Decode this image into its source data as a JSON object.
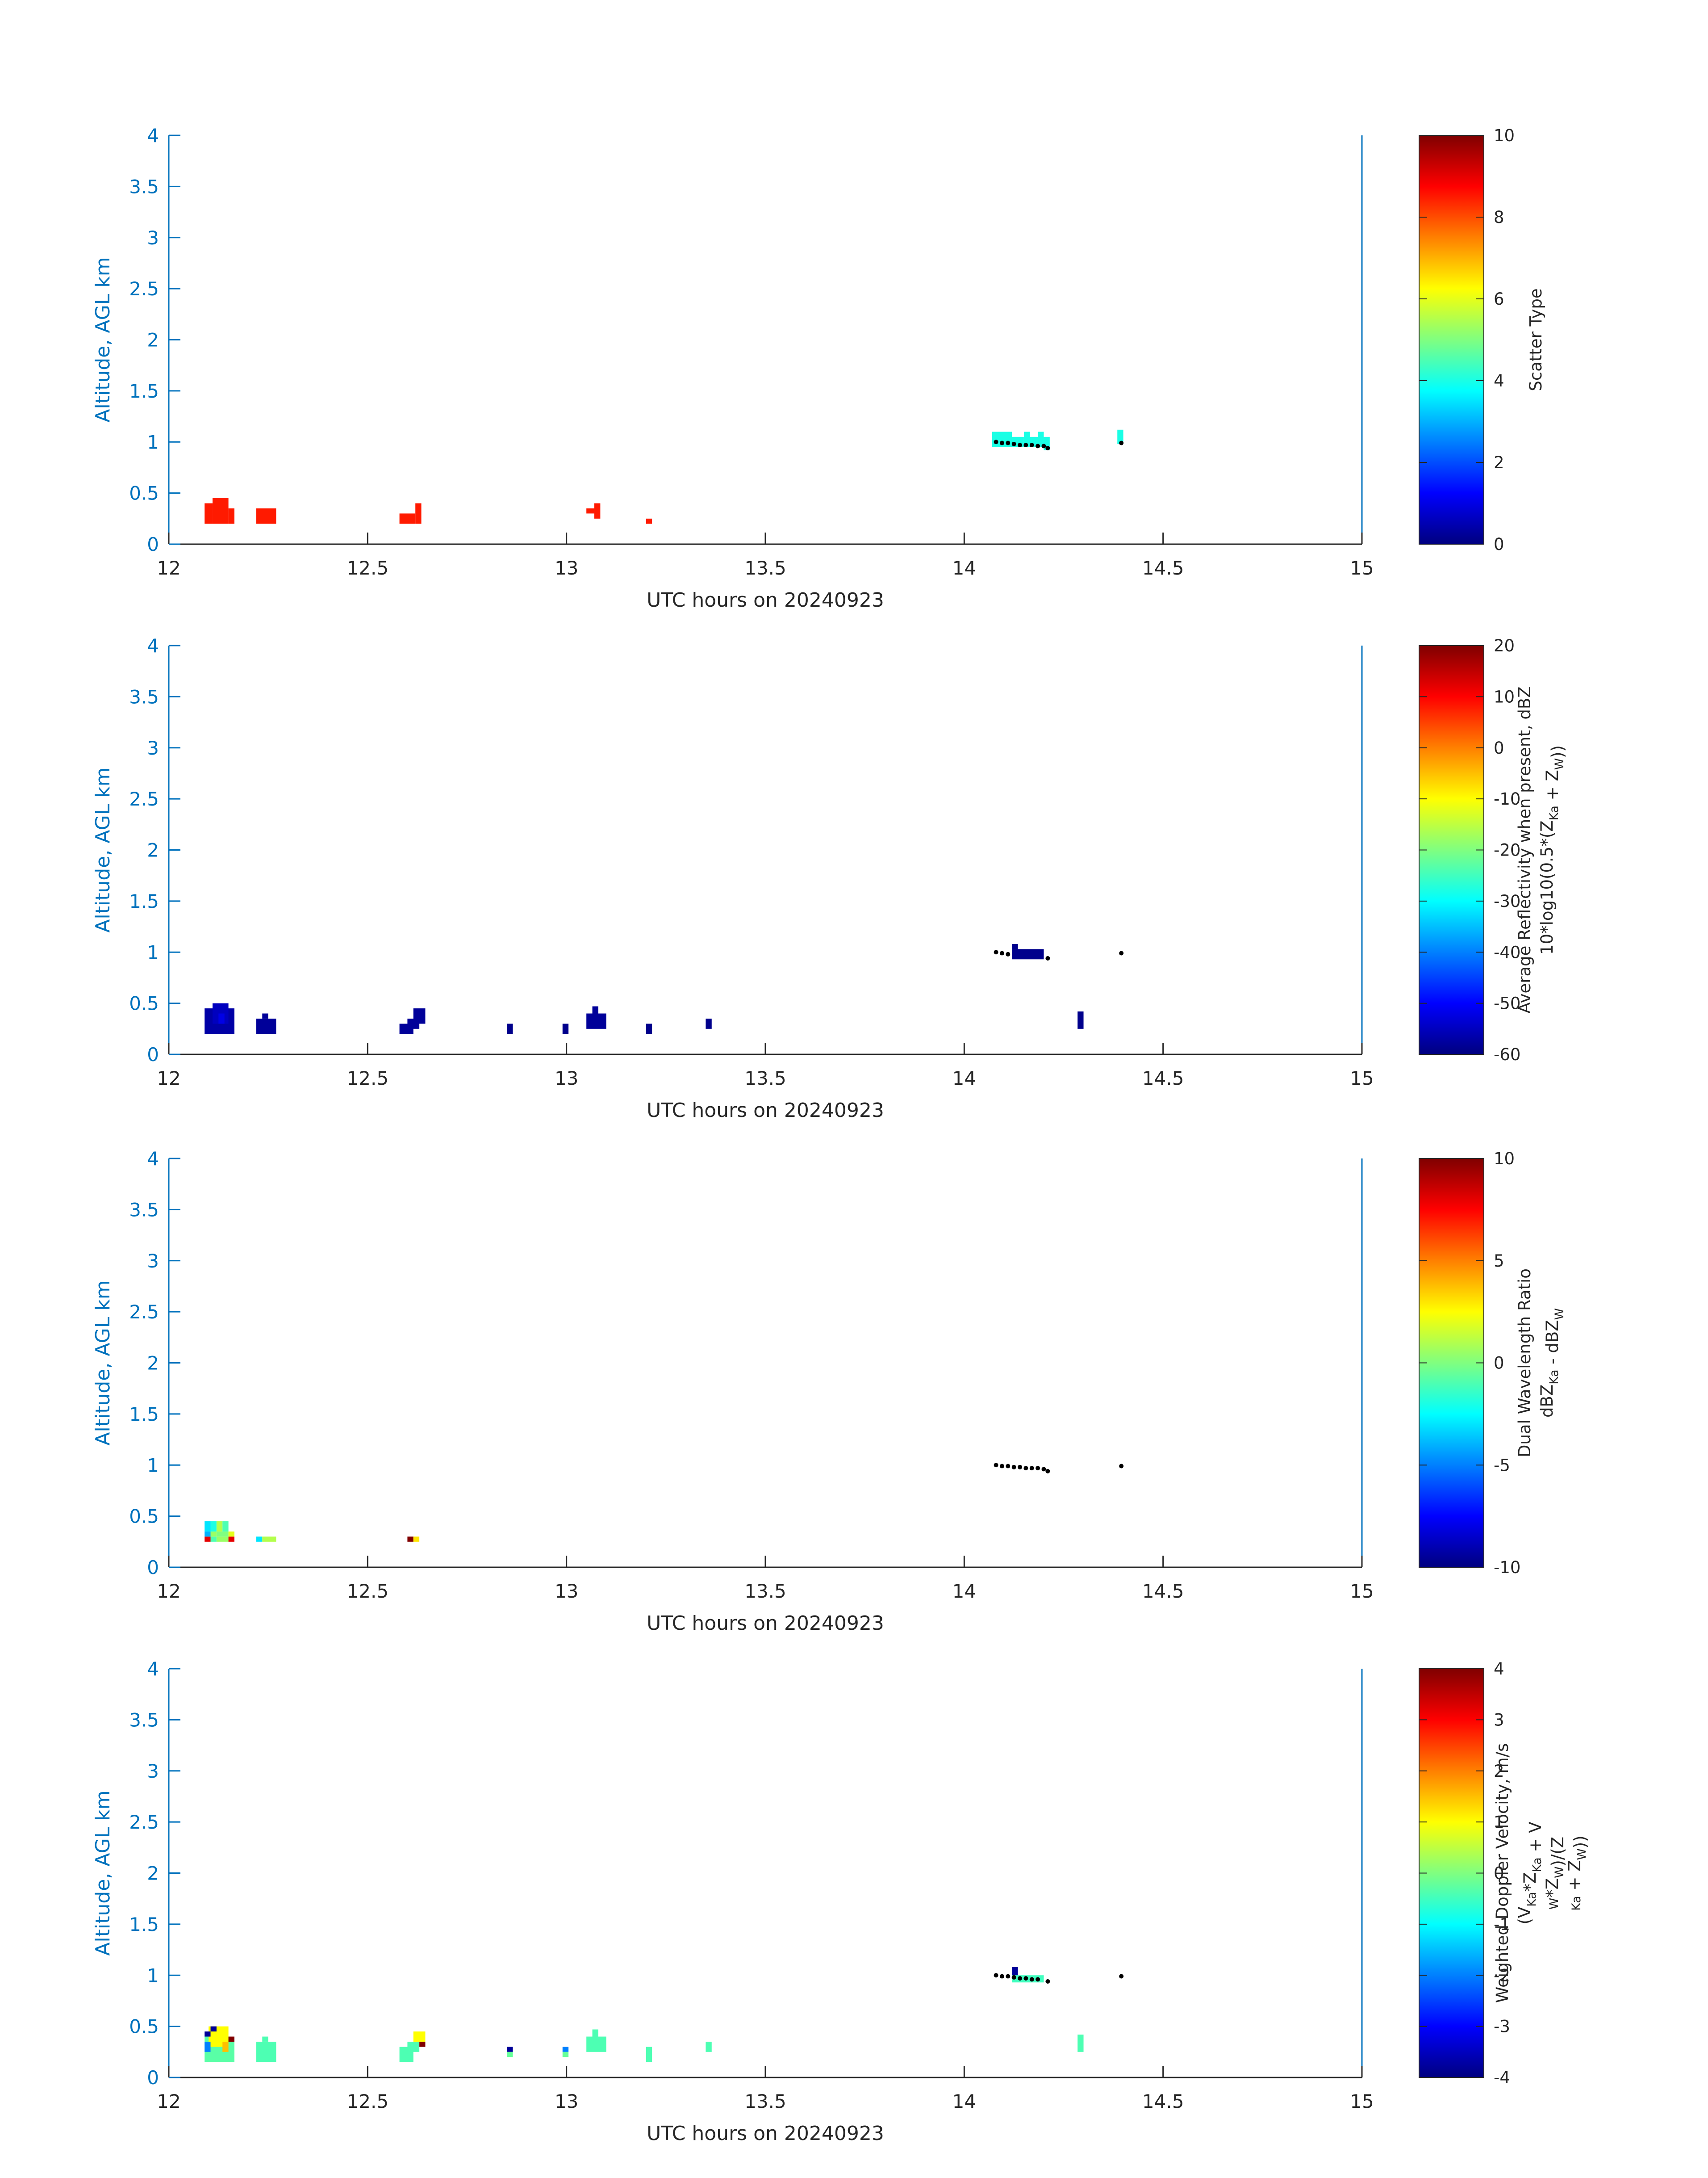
{
  "figure": {
    "colors": {
      "axis_y": "#0072BD",
      "text": "#262626",
      "colormap": "jet",
      "overlay_dots": "#000000"
    }
  },
  "chart_data": [
    {
      "type": "heatmap",
      "xlabel": "UTC hours on 20240923",
      "ylabel": "Altitude, AGL km",
      "xlim": [
        12,
        15
      ],
      "ylim": [
        0,
        4
      ],
      "xticks": [
        "12",
        "12.5",
        "13",
        "13.5",
        "14",
        "14.5",
        "15"
      ],
      "yticks": [
        "0",
        "0.5",
        "1",
        "1.5",
        "2",
        "2.5",
        "3",
        "3.5",
        "4"
      ],
      "colorbar": {
        "lines": [
          {
            "text": "Scatter Type"
          }
        ],
        "clim": [
          0,
          10
        ],
        "ticks": [
          "0",
          "2",
          "4",
          "6",
          "8",
          "10"
        ]
      },
      "cells": [
        {
          "t0": 12.09,
          "t1": 12.11,
          "z0": 0.2,
          "z1": 0.4,
          "v": 8.5
        },
        {
          "t0": 12.11,
          "t1": 12.15,
          "z0": 0.2,
          "z1": 0.45,
          "v": 8.5
        },
        {
          "t0": 12.15,
          "t1": 12.165,
          "z0": 0.2,
          "z1": 0.35,
          "v": 8.5
        },
        {
          "t0": 12.22,
          "t1": 12.27,
          "z0": 0.2,
          "z1": 0.35,
          "v": 8.5
        },
        {
          "t0": 12.58,
          "t1": 12.62,
          "z0": 0.2,
          "z1": 0.3,
          "v": 8.5
        },
        {
          "t0": 12.62,
          "t1": 12.635,
          "z0": 0.2,
          "z1": 0.4,
          "v": 8.5
        },
        {
          "t0": 13.05,
          "t1": 13.07,
          "z0": 0.3,
          "z1": 0.35,
          "v": 8.5
        },
        {
          "t0": 13.07,
          "t1": 13.085,
          "z0": 0.25,
          "z1": 0.4,
          "v": 8.5
        },
        {
          "t0": 13.2,
          "t1": 13.215,
          "z0": 0.2,
          "z1": 0.25,
          "v": 8.5
        },
        {
          "t0": 14.07,
          "t1": 14.12,
          "z0": 0.95,
          "z1": 1.1,
          "v": 4.0
        },
        {
          "t0": 14.12,
          "t1": 14.15,
          "z0": 0.95,
          "z1": 1.05,
          "v": 4.0
        },
        {
          "t0": 14.15,
          "t1": 14.165,
          "z0": 0.95,
          "z1": 1.1,
          "v": 4.0
        },
        {
          "t0": 14.165,
          "t1": 14.185,
          "z0": 0.95,
          "z1": 1.05,
          "v": 4.0
        },
        {
          "t0": 14.185,
          "t1": 14.2,
          "z0": 0.95,
          "z1": 1.1,
          "v": 4.0
        },
        {
          "t0": 14.2,
          "t1": 14.215,
          "z0": 0.92,
          "z1": 1.05,
          "v": 4.0
        },
        {
          "t0": 14.385,
          "t1": 14.4,
          "z0": 0.98,
          "z1": 1.12,
          "v": 4.0
        }
      ],
      "dots": [
        {
          "t": 14.08,
          "z": 1.0
        },
        {
          "t": 14.095,
          "z": 0.99
        },
        {
          "t": 14.11,
          "z": 0.99
        },
        {
          "t": 14.125,
          "z": 0.98
        },
        {
          "t": 14.14,
          "z": 0.97
        },
        {
          "t": 14.155,
          "z": 0.97
        },
        {
          "t": 14.17,
          "z": 0.97
        },
        {
          "t": 14.185,
          "z": 0.96
        },
        {
          "t": 14.2,
          "z": 0.96
        },
        {
          "t": 14.21,
          "z": 0.94
        },
        {
          "t": 14.395,
          "z": 0.99
        }
      ]
    },
    {
      "type": "heatmap",
      "xlabel": "UTC hours on 20240923",
      "ylabel": "Altitude, AGL km",
      "xlim": [
        12,
        15
      ],
      "ylim": [
        0,
        4
      ],
      "xticks": [
        "12",
        "12.5",
        "13",
        "13.5",
        "14",
        "14.5",
        "15"
      ],
      "yticks": [
        "0",
        "0.5",
        "1",
        "1.5",
        "2",
        "2.5",
        "3",
        "3.5",
        "4"
      ],
      "colorbar": {
        "lines": [
          {
            "text": "Average Reflectivity when present, dBZ"
          },
          {
            "text": "10*log10(0.5*(Z",
            "sub1": "Ka",
            "mid": " + Z",
            "sub2": "W",
            "end": "))"
          }
        ],
        "clim": [
          -60,
          20
        ],
        "ticks": [
          "-60",
          "-50",
          "-40",
          "-30",
          "-20",
          "-10",
          "0",
          "10",
          "20"
        ]
      },
      "cells": [
        {
          "t0": 12.09,
          "t1": 12.165,
          "z0": 0.2,
          "z1": 0.45,
          "v": -57
        },
        {
          "t0": 12.11,
          "t1": 12.15,
          "z0": 0.3,
          "z1": 0.5,
          "v": -55
        },
        {
          "t0": 12.125,
          "t1": 12.14,
          "z0": 0.3,
          "z1": 0.4,
          "v": -52
        },
        {
          "t0": 12.22,
          "t1": 12.27,
          "z0": 0.2,
          "z1": 0.35,
          "v": -58
        },
        {
          "t0": 12.235,
          "t1": 12.25,
          "z0": 0.35,
          "z1": 0.4,
          "v": -58
        },
        {
          "t0": 12.58,
          "t1": 12.615,
          "z0": 0.2,
          "z1": 0.3,
          "v": -58
        },
        {
          "t0": 12.6,
          "t1": 12.63,
          "z0": 0.25,
          "z1": 0.35,
          "v": -58
        },
        {
          "t0": 12.615,
          "t1": 12.645,
          "z0": 0.3,
          "z1": 0.45,
          "v": -58
        },
        {
          "t0": 12.85,
          "t1": 12.865,
          "z0": 0.2,
          "z1": 0.3,
          "v": -59
        },
        {
          "t0": 12.99,
          "t1": 13.005,
          "z0": 0.2,
          "z1": 0.3,
          "v": -59
        },
        {
          "t0": 13.05,
          "t1": 13.1,
          "z0": 0.25,
          "z1": 0.4,
          "v": -58
        },
        {
          "t0": 13.065,
          "t1": 13.08,
          "z0": 0.4,
          "z1": 0.47,
          "v": -58
        },
        {
          "t0": 13.2,
          "t1": 13.215,
          "z0": 0.2,
          "z1": 0.3,
          "v": -59
        },
        {
          "t0": 13.35,
          "t1": 13.365,
          "z0": 0.25,
          "z1": 0.35,
          "v": -59
        },
        {
          "t0": 14.12,
          "t1": 14.2,
          "z0": 0.93,
          "z1": 1.03,
          "v": -59
        },
        {
          "t0": 14.12,
          "t1": 14.135,
          "z0": 1.03,
          "z1": 1.08,
          "v": -59
        },
        {
          "t0": 14.285,
          "t1": 14.3,
          "z0": 0.25,
          "z1": 0.42,
          "v": -59
        }
      ],
      "dots": [
        {
          "t": 14.08,
          "z": 1.0
        },
        {
          "t": 14.095,
          "z": 0.99
        },
        {
          "t": 14.11,
          "z": 0.98
        },
        {
          "t": 14.21,
          "z": 0.94
        },
        {
          "t": 14.395,
          "z": 0.99
        }
      ]
    },
    {
      "type": "heatmap",
      "xlabel": "UTC hours on 20240923",
      "ylabel": "Altitude, AGL km",
      "xlim": [
        12,
        15
      ],
      "ylim": [
        0,
        4
      ],
      "xticks": [
        "12",
        "12.5",
        "13",
        "13.5",
        "14",
        "14.5",
        "15"
      ],
      "yticks": [
        "0",
        "0.5",
        "1",
        "1.5",
        "2",
        "2.5",
        "3",
        "3.5",
        "4"
      ],
      "colorbar": {
        "lines": [
          {
            "text": "Dual Wavelength Ratio"
          },
          {
            "text": "dBZ",
            "sub1": "Ka",
            "mid": " - dBZ",
            "sub2": "W",
            "end": ""
          }
        ],
        "clim": [
          -10,
          10
        ],
        "ticks": [
          "-10",
          "-5",
          "0",
          "5",
          "10"
        ]
      },
      "cells": [
        {
          "t0": 12.09,
          "t1": 12.105,
          "z0": 0.25,
          "z1": 0.3,
          "v": 8.0
        },
        {
          "t0": 12.09,
          "t1": 12.105,
          "z0": 0.3,
          "z1": 0.35,
          "v": -4.0
        },
        {
          "t0": 12.09,
          "t1": 12.105,
          "z0": 0.35,
          "z1": 0.45,
          "v": -3.0
        },
        {
          "t0": 12.105,
          "t1": 12.12,
          "z0": 0.25,
          "z1": 0.3,
          "v": -1.0
        },
        {
          "t0": 12.105,
          "t1": 12.12,
          "z0": 0.3,
          "z1": 0.35,
          "v": 0.5
        },
        {
          "t0": 12.105,
          "t1": 12.12,
          "z0": 0.35,
          "z1": 0.45,
          "v": -2.0
        },
        {
          "t0": 12.12,
          "t1": 12.15,
          "z0": 0.25,
          "z1": 0.3,
          "v": 0.5
        },
        {
          "t0": 12.12,
          "t1": 12.15,
          "z0": 0.3,
          "z1": 0.35,
          "v": 0.0
        },
        {
          "t0": 12.12,
          "t1": 12.135,
          "z0": 0.35,
          "z1": 0.45,
          "v": 1.0
        },
        {
          "t0": 12.135,
          "t1": 12.15,
          "z0": 0.35,
          "z1": 0.45,
          "v": -1.0
        },
        {
          "t0": 12.15,
          "t1": 12.165,
          "z0": 0.25,
          "z1": 0.3,
          "v": 8.0
        },
        {
          "t0": 12.15,
          "t1": 12.165,
          "z0": 0.3,
          "z1": 0.35,
          "v": 2.0
        },
        {
          "t0": 12.22,
          "t1": 12.235,
          "z0": 0.25,
          "z1": 0.3,
          "v": -3.0
        },
        {
          "t0": 12.235,
          "t1": 12.27,
          "z0": 0.25,
          "z1": 0.3,
          "v": 1.0
        },
        {
          "t0": 12.6,
          "t1": 12.615,
          "z0": 0.25,
          "z1": 0.3,
          "v": 10.0
        },
        {
          "t0": 12.615,
          "t1": 12.63,
          "z0": 0.25,
          "z1": 0.3,
          "v": 3.0
        }
      ],
      "dots": [
        {
          "t": 14.08,
          "z": 1.0
        },
        {
          "t": 14.095,
          "z": 0.99
        },
        {
          "t": 14.11,
          "z": 0.99
        },
        {
          "t": 14.125,
          "z": 0.98
        },
        {
          "t": 14.14,
          "z": 0.98
        },
        {
          "t": 14.155,
          "z": 0.97
        },
        {
          "t": 14.17,
          "z": 0.97
        },
        {
          "t": 14.185,
          "z": 0.97
        },
        {
          "t": 14.2,
          "z": 0.96
        },
        {
          "t": 14.21,
          "z": 0.94
        },
        {
          "t": 14.395,
          "z": 0.99
        }
      ]
    },
    {
      "type": "heatmap",
      "xlabel": "UTC hours on 20240923",
      "ylabel": "Altitude, AGL km",
      "xlim": [
        12,
        15
      ],
      "ylim": [
        0,
        4
      ],
      "xticks": [
        "12",
        "12.5",
        "13",
        "13.5",
        "14",
        "14.5",
        "15"
      ],
      "yticks": [
        "0",
        "0.5",
        "1",
        "1.5",
        "2",
        "2.5",
        "3",
        "3.5",
        "4"
      ],
      "colorbar": {
        "lines": [
          {
            "text": "Weighted Doppler Velocity, m/s"
          },
          {
            "text": "(V",
            "sub1": "Ka",
            "mid": "*Z",
            "sub2": "Ka",
            "end": " + V"
          },
          {
            "text": "",
            "sub1": "W",
            "mid": "*Z",
            "sub2": "W",
            "end": ")/(Z"
          },
          {
            "text": "",
            "sub1": "Ka",
            "mid": " + Z",
            "sub2": "W",
            "end": "))"
          }
        ],
        "clim": [
          -4,
          4
        ],
        "ticks": [
          "-4",
          "-3",
          "-2",
          "-1",
          "0",
          "1",
          "2",
          "3",
          "4"
        ]
      },
      "cells": [
        {
          "t0": 12.09,
          "t1": 12.165,
          "z0": 0.15,
          "z1": 0.4,
          "v": -0.3
        },
        {
          "t0": 12.1,
          "t1": 12.15,
          "z0": 0.3,
          "z1": 0.5,
          "v": 1.0
        },
        {
          "t0": 12.09,
          "t1": 12.105,
          "z0": 0.25,
          "z1": 0.35,
          "v": -2.0
        },
        {
          "t0": 12.09,
          "t1": 12.105,
          "z0": 0.4,
          "z1": 0.45,
          "v": -3.8
        },
        {
          "t0": 12.105,
          "t1": 12.12,
          "z0": 0.45,
          "z1": 0.5,
          "v": -3.8
        },
        {
          "t0": 12.15,
          "t1": 12.165,
          "z0": 0.35,
          "z1": 0.4,
          "v": 4.0
        },
        {
          "t0": 12.135,
          "t1": 12.15,
          "z0": 0.25,
          "z1": 0.35,
          "v": 1.5
        },
        {
          "t0": 12.22,
          "t1": 12.27,
          "z0": 0.15,
          "z1": 0.35,
          "v": -0.4
        },
        {
          "t0": 12.235,
          "t1": 12.25,
          "z0": 0.35,
          "z1": 0.4,
          "v": -0.4
        },
        {
          "t0": 12.58,
          "t1": 12.615,
          "z0": 0.15,
          "z1": 0.3,
          "v": -0.4
        },
        {
          "t0": 12.6,
          "t1": 12.63,
          "z0": 0.25,
          "z1": 0.35,
          "v": -0.4
        },
        {
          "t0": 12.615,
          "t1": 12.645,
          "z0": 0.35,
          "z1": 0.45,
          "v": 1.0
        },
        {
          "t0": 12.63,
          "t1": 12.645,
          "z0": 0.3,
          "z1": 0.35,
          "v": 4.0
        },
        {
          "t0": 12.85,
          "t1": 12.865,
          "z0": 0.25,
          "z1": 0.3,
          "v": -3.8
        },
        {
          "t0": 12.85,
          "t1": 12.865,
          "z0": 0.2,
          "z1": 0.25,
          "v": -0.2
        },
        {
          "t0": 12.99,
          "t1": 13.005,
          "z0": 0.25,
          "z1": 0.3,
          "v": -2.0
        },
        {
          "t0": 12.99,
          "t1": 13.005,
          "z0": 0.2,
          "z1": 0.25,
          "v": -0.2
        },
        {
          "t0": 13.05,
          "t1": 13.1,
          "z0": 0.25,
          "z1": 0.4,
          "v": -0.4
        },
        {
          "t0": 13.065,
          "t1": 13.08,
          "z0": 0.4,
          "z1": 0.47,
          "v": -0.4
        },
        {
          "t0": 13.2,
          "t1": 13.215,
          "z0": 0.15,
          "z1": 0.3,
          "v": -0.4
        },
        {
          "t0": 13.35,
          "t1": 13.365,
          "z0": 0.25,
          "z1": 0.35,
          "v": -0.4
        },
        {
          "t0": 14.12,
          "t1": 14.2,
          "z0": 0.93,
          "z1": 1.0,
          "v": -0.5
        },
        {
          "t0": 14.12,
          "t1": 14.135,
          "z0": 1.0,
          "z1": 1.08,
          "v": -3.8
        },
        {
          "t0": 14.285,
          "t1": 14.3,
          "z0": 0.25,
          "z1": 0.42,
          "v": -0.4
        }
      ],
      "dots": [
        {
          "t": 14.08,
          "z": 1.0
        },
        {
          "t": 14.095,
          "z": 0.99
        },
        {
          "t": 14.11,
          "z": 0.99
        },
        {
          "t": 14.125,
          "z": 0.98
        },
        {
          "t": 14.14,
          "z": 0.97
        },
        {
          "t": 14.155,
          "z": 0.97
        },
        {
          "t": 14.17,
          "z": 0.96
        },
        {
          "t": 14.185,
          "z": 0.96
        },
        {
          "t": 14.21,
          "z": 0.94
        },
        {
          "t": 14.395,
          "z": 0.99
        }
      ]
    }
  ]
}
